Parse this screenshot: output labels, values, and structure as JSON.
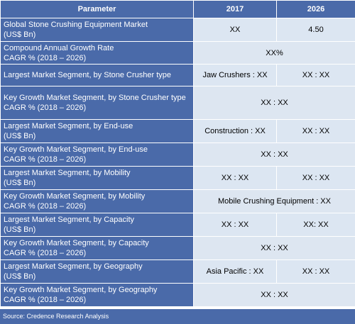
{
  "header": {
    "parameter": "Parameter",
    "year1": "2017",
    "year2": "2026"
  },
  "rows": [
    {
      "label1": "Global Stone Crushing Equipment Market",
      "label2": "(US$ Bn)",
      "v1": "XX",
      "v2": "4.50"
    },
    {
      "label1": "Compound Annual Growth Rate",
      "label2": "CAGR % (2018 – 2026)",
      "span": "XX%"
    },
    {
      "label1": "Largest Market Segment, by Stone Crusher type",
      "label2": "",
      "v1": "Jaw Crushers : XX",
      "v2": "XX : XX"
    },
    {
      "label1": "Key Growth Market Segment, by Stone Crusher type",
      "label2": "CAGR % (2018 – 2026)",
      "span": "XX : XX"
    },
    {
      "label1": "Largest Market Segment, by End-use",
      "label2": "(US$ Bn)",
      "v1": "Construction : XX",
      "v2": "XX : XX"
    },
    {
      "label1": "Key Growth Market Segment, by End-use",
      "label2": "CAGR % (2018 – 2026)",
      "span": "XX : XX"
    },
    {
      "label1": "Largest Market Segment, by Mobility",
      "label2": "(US$ Bn)",
      "v1": "XX : XX",
      "v2": "XX : XX"
    },
    {
      "label1": "Key Growth Market Segment, by Mobility",
      "label2": "CAGR % (2018 – 2026)",
      "span": "Mobile Crushing Equipment : XX"
    },
    {
      "label1": "Largest Market Segment, by Capacity",
      "label2": "(US$ Bn)",
      "v1": "XX : XX",
      "v2": "XX: XX"
    },
    {
      "label1": "Key Growth Market Segment, by Capacity",
      "label2": "CAGR % (2018 – 2026)",
      "span": "XX : XX"
    },
    {
      "label1": "Largest Market Segment, by Geography",
      "label2": "(US$ Bn)",
      "v1": "Asia Pacific : XX",
      "v2": "XX : XX"
    },
    {
      "label1": "Key Growth Market Segment, by Geography",
      "label2": "CAGR % (2018 – 2026)",
      "span": "XX : XX"
    }
  ],
  "source": "Source: Credence Research Analysis"
}
